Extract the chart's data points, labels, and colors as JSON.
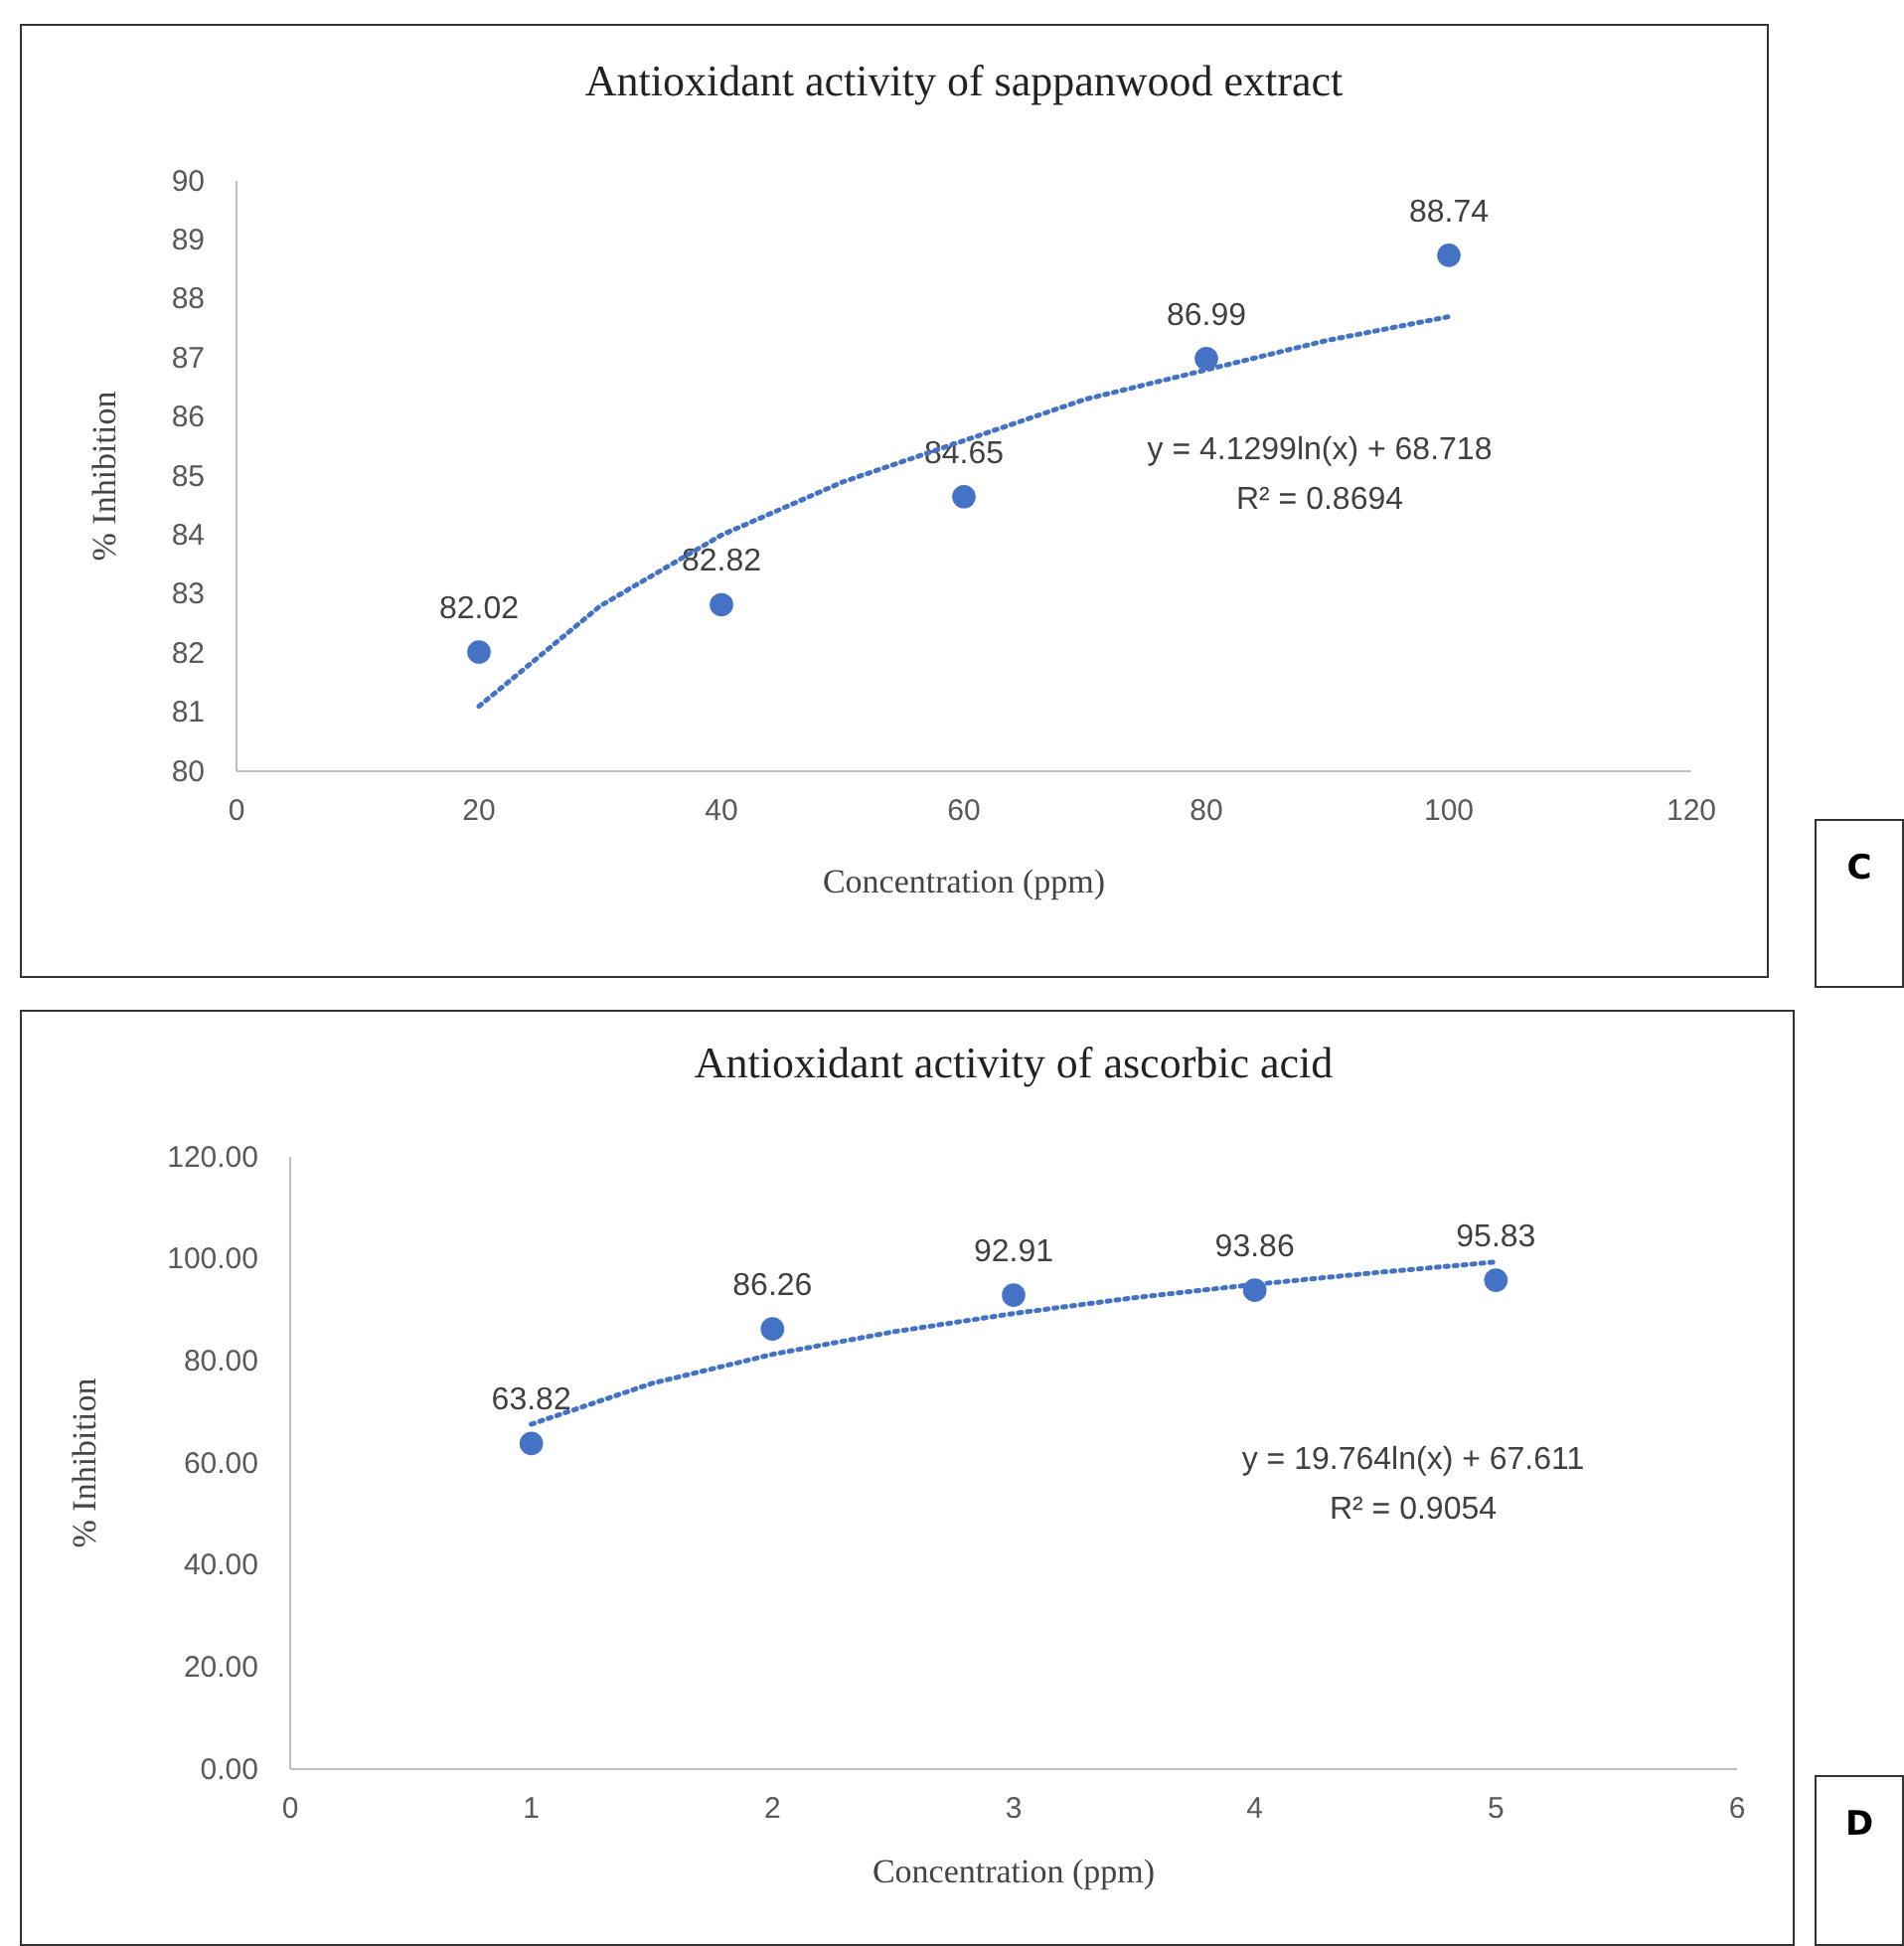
{
  "chart_data": [
    {
      "type": "scatter",
      "title": "Antioxidant activity of sappanwood extract",
      "xlabel": "Concentration (ppm)",
      "ylabel": "% Inhibition",
      "xlim": [
        0,
        120
      ],
      "xticks": [
        0,
        20,
        40,
        60,
        80,
        100,
        120
      ],
      "ylim": [
        80,
        90
      ],
      "yticks": [
        80,
        81,
        82,
        83,
        84,
        85,
        86,
        87,
        88,
        89,
        90
      ],
      "annotations": [
        "y = 4.1299ln(x) + 68.718",
        "R² = 0.8694",
        "C"
      ],
      "series": [
        {
          "marker": "circle",
          "color": "#4472c4",
          "x": [
            20,
            40,
            60,
            80,
            100
          ],
          "values": [
            82.02,
            82.82,
            84.65,
            86.99,
            88.74
          ],
          "value_labels": [
            "82.02",
            "82.82",
            "84.65",
            "86.99",
            "88.74"
          ]
        },
        {
          "type": "line",
          "line_style": "dotted",
          "color": "#4472c4",
          "x": [
            20,
            30,
            40,
            50,
            60,
            70,
            80,
            90,
            100
          ],
          "values": [
            81.1,
            82.8,
            84.0,
            84.9,
            85.6,
            86.3,
            86.8,
            87.3,
            87.7
          ]
        }
      ]
    },
    {
      "type": "scatter",
      "title": "Antioxidant activity of ascorbic acid",
      "xlabel": "Concentration (ppm)",
      "ylabel": "% Inhibition",
      "xlim": [
        0,
        6
      ],
      "xticks": [
        0,
        1,
        2,
        3,
        4,
        5,
        6
      ],
      "ylim": [
        0,
        120
      ],
      "yticks": [
        {
          "value": 0,
          "label": "0.00"
        },
        {
          "value": 20,
          "label": "20.00"
        },
        {
          "value": 40,
          "label": "40.00"
        },
        {
          "value": 60,
          "label": "60.00"
        },
        {
          "value": 80,
          "label": "80.00"
        },
        {
          "value": 100,
          "label": "100.00"
        },
        {
          "value": 120,
          "label": "120.00"
        }
      ],
      "annotations": [
        "y = 19.764ln(x) + 67.611",
        "R² = 0.9054",
        "D"
      ],
      "series": [
        {
          "marker": "circle",
          "color": "#4472c4",
          "x": [
            1,
            2,
            3,
            4,
            5
          ],
          "values": [
            63.82,
            86.26,
            92.91,
            93.86,
            95.83
          ],
          "value_labels": [
            "63.82",
            "86.26",
            "92.91",
            "93.86",
            "95.83"
          ]
        },
        {
          "type": "line",
          "line_style": "dotted",
          "color": "#4472c4",
          "x": [
            1,
            1.5,
            2,
            2.5,
            3,
            3.5,
            4,
            4.5,
            5
          ],
          "values": [
            67.6,
            75.6,
            81.3,
            85.7,
            89.3,
            92.4,
            95.0,
            97.3,
            99.4
          ]
        }
      ]
    }
  ]
}
